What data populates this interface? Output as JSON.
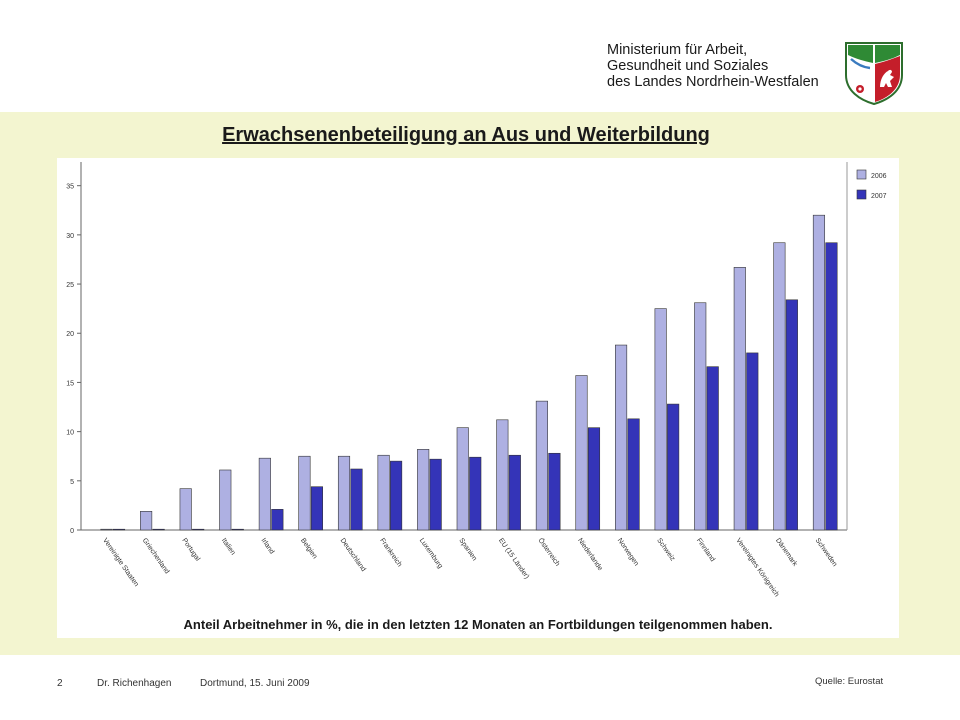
{
  "header": {
    "ministry_lines": [
      "Ministerium für Arbeit,",
      "Gesundheit und Soziales",
      "des Landes Nordrhein-Westfalen"
    ],
    "logo_icon": "nrw-coat-of-arms-icon"
  },
  "slide": {
    "title": "Erwachsenenbeteiligung an Aus und Weiterbildung",
    "caption": "Anteil Arbeitnehmer in %, die in den letzten 12 Monaten an Fortbildungen teilgenommen haben."
  },
  "footer": {
    "page_number": "2",
    "author": "Dr. Richenhagen",
    "location_date": "Dortmund, 15. Juni 2009",
    "source": "Quelle: Eurostat"
  },
  "colors": {
    "band_background": "#f3f5d0",
    "series_2006": "#aeb0e2",
    "series_2007": "#3434b8"
  },
  "chart_data": {
    "type": "bar",
    "title": "",
    "xlabel": "",
    "ylabel": "",
    "ylim": [
      0,
      37
    ],
    "yticks": [
      0,
      5,
      10,
      15,
      20,
      25,
      30,
      35
    ],
    "grid": false,
    "legend_position": "top-right",
    "categories": [
      "Vereinigte Staaten",
      "Griechenland",
      "Portugal",
      "Italien",
      "Irland",
      "Belgien",
      "Deutschland",
      "Frankreich",
      "Luxemburg",
      "Spanien",
      "EU (15 Länder)",
      "Österreich",
      "Niederlande",
      "Norwegen",
      "Schweiz",
      "Finnland",
      "Vereinigtes Königreich",
      "Dänemark",
      "Schweden"
    ],
    "series": [
      {
        "name": "2006",
        "values": [
          0,
          1.9,
          4.2,
          6.1,
          7.3,
          7.5,
          7.5,
          7.6,
          8.2,
          10.4,
          11.2,
          13.1,
          15.7,
          18.8,
          22.5,
          23.1,
          26.7,
          29.2,
          32.0
        ]
      },
      {
        "name": "2007",
        "values": [
          0,
          0,
          0,
          0,
          2.1,
          4.4,
          6.2,
          7.0,
          7.2,
          7.4,
          7.6,
          7.8,
          10.4,
          11.3,
          12.8,
          16.6,
          18.0,
          23.4,
          29.2
        ]
      }
    ]
  }
}
